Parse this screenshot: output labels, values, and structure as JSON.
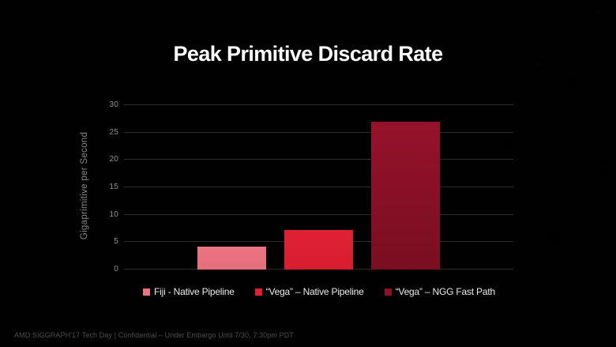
{
  "slide": {
    "title": "Peak Primitive Discard Rate",
    "footer": "AMD SIGGRAPH'17 Tech Day | Confidential – Under Embargo Until 7/30, 7:30pm PDT"
  },
  "colors": {
    "background": "#010102",
    "title_text": "#ffffff",
    "axis_text": "#8f8f8f",
    "y_axis_label_text": "#878787",
    "gridline": "#2c2c2c",
    "legend_text": "#ececec",
    "footer_text": "#4d4d4d"
  },
  "chart_data": {
    "type": "bar",
    "title": "Peak Primitive Discard Rate",
    "xlabel": "",
    "ylabel": "Gigaprimitive per Second",
    "ylim": [
      0,
      30
    ],
    "yticks": [
      0,
      5,
      10,
      15,
      20,
      25,
      30
    ],
    "grid": true,
    "legend_position": "bottom",
    "categories": [
      "Fiji - Native Pipeline",
      "“Vega” – Native Pipeline",
      "“Vega” – NGG Fast Path"
    ],
    "values": [
      4.2,
      7.2,
      27
    ],
    "series": [
      {
        "name": "Peak Primitive Discard Rate",
        "values": [
          4.2,
          7.2,
          27
        ]
      }
    ],
    "bar_colors_top": [
      "#e8747f",
      "#e02134",
      "#95122b"
    ],
    "bar_colors_bottom": [
      "#e66f7c",
      "#d81d30",
      "#7a0e21"
    ],
    "legend_swatch_colors": [
      "#e8747f",
      "#de2032",
      "#8c1126"
    ]
  }
}
